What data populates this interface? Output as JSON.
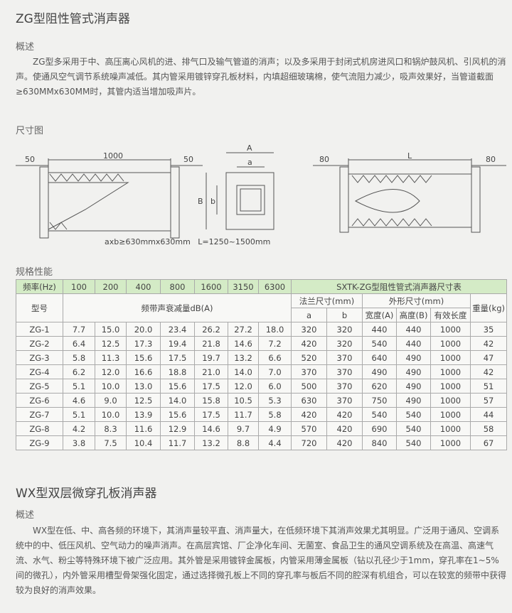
{
  "zg": {
    "title": "ZG型阻性管式消声器",
    "overview_heading": "概述",
    "overview": "ZG型多采用于中、高压离心风机的进、排气口及输气管道的消声；以及多采用于封闭式机房进风口和锅炉鼓风机、引风机的消声。使通风空气调节系统噪声减低。其内管采用镀锌穿孔板材料，内填超细玻璃棉，使气流阻力减少，吸声效果好，当管道截面≥630MMx630MM时，其管内适当增加吸声片。",
    "dimension_heading": "尺寸图",
    "diagram": {
      "left": [
        "50",
        "1000",
        "50"
      ],
      "middle": [
        "A",
        "a",
        "B",
        "b"
      ],
      "right": [
        "80",
        "L",
        "80"
      ],
      "caption": "axb≥630mmx630mm   L=1250~1500mm"
    },
    "spec_heading": "规格性能",
    "table": {
      "header": {
        "freq_label": "频率(Hz)",
        "freqs": [
          "100",
          "200",
          "400",
          "800",
          "1600",
          "3150",
          "6300"
        ],
        "size_table_title": "SXTK-ZG型阻性管式消声器尺寸表",
        "model": "型号",
        "attenuation": "频带声衰减量dB(A)",
        "flange": "法兰尺寸(mm)",
        "outline": "外形尺寸(mm)",
        "weight": "重量(kg)",
        "flange_cols": [
          "a",
          "b"
        ],
        "outline_cols": [
          "宽度(A)",
          "高度(B)",
          "有效长度"
        ]
      },
      "rows": [
        [
          "ZG-1",
          "7.7",
          "15.0",
          "20.0",
          "23.4",
          "26.2",
          "27.2",
          "18.0",
          "320",
          "320",
          "440",
          "440",
          "1000",
          "35"
        ],
        [
          "ZG-2",
          "6.4",
          "12.5",
          "17.3",
          "19.4",
          "21.8",
          "14.6",
          "7.2",
          "420",
          "320",
          "540",
          "440",
          "1000",
          "42"
        ],
        [
          "ZG-3",
          "5.8",
          "11.3",
          "15.6",
          "17.5",
          "19.7",
          "13.2",
          "6.6",
          "520",
          "370",
          "640",
          "490",
          "1000",
          "47"
        ],
        [
          "ZG-4",
          "6.2",
          "12.0",
          "16.6",
          "18.8",
          "21.0",
          "14.0",
          "7.0",
          "370",
          "370",
          "490",
          "490",
          "1000",
          "42"
        ],
        [
          "ZG-5",
          "5.1",
          "10.0",
          "13.0",
          "15.6",
          "17.5",
          "12.0",
          "6.0",
          "500",
          "370",
          "620",
          "490",
          "1000",
          "51"
        ],
        [
          "ZG-6",
          "4.6",
          "9.0",
          "12.5",
          "14.0",
          "15.8",
          "10.5",
          "5.3",
          "630",
          "370",
          "750",
          "490",
          "1000",
          "57"
        ],
        [
          "ZG-7",
          "5.1",
          "10.0",
          "13.9",
          "15.6",
          "17.5",
          "11.7",
          "5.8",
          "420",
          "420",
          "540",
          "540",
          "1000",
          "44"
        ],
        [
          "ZG-8",
          "4.2",
          "8.3",
          "11.6",
          "12.9",
          "14.6",
          "9.7",
          "4.9",
          "570",
          "420",
          "690",
          "540",
          "1000",
          "58"
        ],
        [
          "ZG-9",
          "3.8",
          "7.5",
          "10.4",
          "11.7",
          "13.2",
          "8.8",
          "4.4",
          "720",
          "420",
          "840",
          "540",
          "1000",
          "67"
        ]
      ]
    }
  },
  "wx": {
    "title": "WX型双层微穿孔板消声器",
    "overview_heading": "概述",
    "overview": "WX型在低、中、高各频的环境下，其消声量较平直、消声量大，在低频环境下其消声效果尤其明显。广泛用于通风、空调系统中的中、低压风机、空气动力的噪声消声。在高层宾馆、厂企净化车间、无菌室、食品卫生的通风空调系统及在高温、高速气流、水气、粉尘等特殊环境下被广泛应用。其外管是采用镀锌金属板，内管采用薄金属板（钻以孔径少于1mm，穿孔率在1~5%间的微孔），内外管采用槽型骨架强化固定，通过选择微孔板上不同的穿孔率与板后不同的腔深有机组合，可以在较宽的频带中获得较为良好的消声效果。"
  }
}
